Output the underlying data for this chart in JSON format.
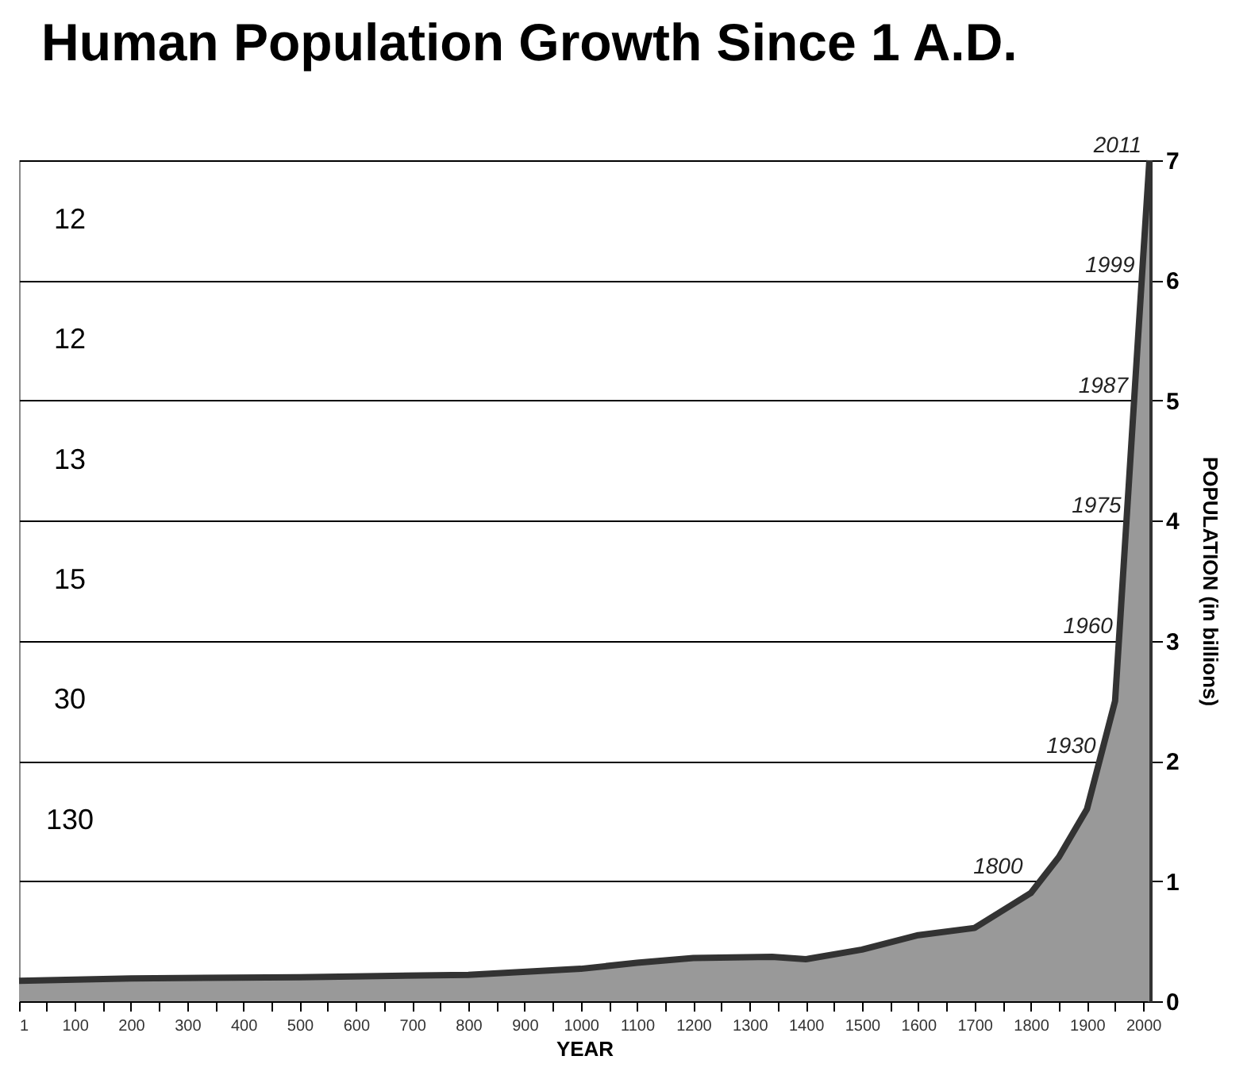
{
  "chart_data": {
    "type": "area",
    "title": "Human Population Growth Since 1 A.D.",
    "xlabel": "YEAR",
    "ylabel": "POPULATION (in billions)",
    "x": [
      1,
      200,
      500,
      800,
      1000,
      1100,
      1200,
      1340,
      1400,
      1500,
      1600,
      1700,
      1800,
      1850,
      1900,
      1950,
      2000,
      2011
    ],
    "series": [
      {
        "color": "#999999",
        "values": [
          0.17,
          0.19,
          0.2,
          0.22,
          0.27,
          0.32,
          0.36,
          0.37,
          0.35,
          0.43,
          0.55,
          0.61,
          0.9,
          1.2,
          1.6,
          2.5,
          6.2,
          7
        ]
      }
    ],
    "xlim": [
      1,
      2011
    ],
    "ylim": [
      0,
      7
    ],
    "xticks": [
      1,
      {
        "value": 50,
        "label": null
      },
      100,
      {
        "value": 150,
        "label": null
      },
      200,
      {
        "value": 250,
        "label": null
      },
      300,
      {
        "value": 350,
        "label": null
      },
      400,
      {
        "value": 450,
        "label": null
      },
      500,
      {
        "value": 550,
        "label": null
      },
      600,
      {
        "value": 650,
        "label": null
      },
      700,
      {
        "value": 750,
        "label": null
      },
      800,
      {
        "value": 850,
        "label": null
      },
      900,
      {
        "value": 950,
        "label": null
      },
      1000,
      {
        "value": 1050,
        "label": null
      },
      1100,
      {
        "value": 1150,
        "label": null
      },
      1200,
      {
        "value": 1250,
        "label": null
      },
      1300,
      {
        "value": 1350,
        "label": null
      },
      1400,
      {
        "value": 1450,
        "label": null
      },
      1500,
      {
        "value": 1550,
        "label": null
      },
      1600,
      {
        "value": 1650,
        "label": null
      },
      1700,
      {
        "value": 1750,
        "label": null
      },
      1800,
      {
        "value": 1850,
        "label": null
      },
      1900,
      {
        "value": 1950,
        "label": null
      },
      2000
    ],
    "yticks": [
      0,
      1,
      2,
      3,
      4,
      5,
      6,
      7
    ],
    "grid": "y",
    "annotations": [
      {
        "text": "2011",
        "x": 2011,
        "y": 7
      },
      {
        "text": "1999",
        "x": 1999,
        "y": 6
      },
      {
        "text": "1987",
        "x": 1987,
        "y": 5
      },
      {
        "text": "1975",
        "x": 1975,
        "y": 4
      },
      {
        "text": "1960",
        "x": 1960,
        "y": 3
      },
      {
        "text": "1930",
        "x": 1930,
        "y": 2
      },
      {
        "text": "1800",
        "x": 1800,
        "y": 1
      },
      "12",
      "12",
      "13",
      "15",
      "30",
      "130"
    ]
  }
}
